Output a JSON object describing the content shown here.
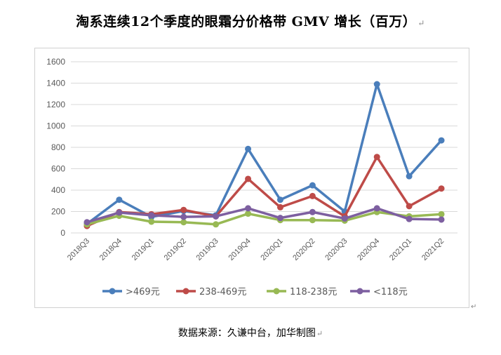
{
  "page": {
    "title": "淘系连续12个季度的眼霜分价格带 GMV 增长（百万）",
    "source": "数据来源：久谦中台，加华制图",
    "paragraph_mark": "↵"
  },
  "colors": {
    "grid": "#d9d9d9",
    "axis_text": "#595959"
  },
  "chart_data": {
    "type": "line",
    "title": "淘系连续12个季度的眼霜分价格带 GMV 增长（百万）",
    "xlabel": "",
    "ylabel": "",
    "categories": [
      "2018Q3",
      "2018Q4",
      "2019Q1",
      "2019Q2",
      "2019Q3",
      "2019Q4",
      "2020Q1",
      "2020Q2",
      "2020Q3",
      "2020Q4",
      "2021Q1",
      "2021Q2"
    ],
    "ylim": [
      0,
      1600
    ],
    "yticks": [
      0,
      200,
      400,
      600,
      800,
      1000,
      1200,
      1400,
      1600
    ],
    "grid": true,
    "legend_position": "bottom",
    "series": [
      {
        "name": ">469元",
        "color": "#4a7ebb",
        "values": [
          85,
          310,
          150,
          205,
          165,
          785,
          310,
          445,
          200,
          1390,
          530,
          865
        ]
      },
      {
        "name": "238-469元",
        "color": "#be4b48",
        "values": [
          65,
          195,
          175,
          215,
          155,
          505,
          240,
          345,
          155,
          710,
          250,
          415
        ]
      },
      {
        "name": "118-238元",
        "color": "#98b954",
        "values": [
          80,
          160,
          105,
          100,
          80,
          180,
          120,
          120,
          115,
          195,
          155,
          175
        ]
      },
      {
        "name": "<118元",
        "color": "#7d5fa0",
        "values": [
          100,
          190,
          165,
          150,
          155,
          230,
          140,
          195,
          135,
          230,
          130,
          125
        ]
      }
    ]
  }
}
